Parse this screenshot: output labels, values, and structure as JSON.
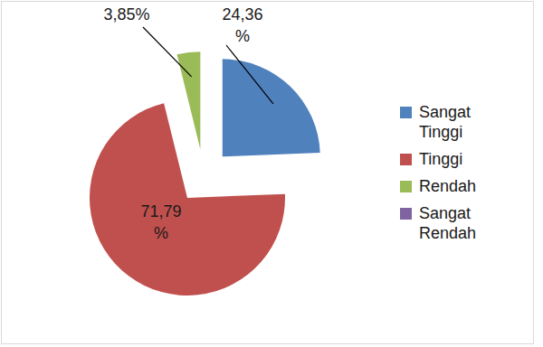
{
  "chart_data": {
    "type": "pie",
    "categories": [
      "Sangat Tinggi",
      "Tinggi",
      "Rendah",
      "Sangat Rendah"
    ],
    "values": [
      24.36,
      71.79,
      3.85,
      0
    ],
    "value_labels": [
      "24,36 %",
      "71,79 %",
      "3,85%",
      null
    ],
    "colors": [
      "#4f81bd",
      "#c0504d",
      "#9bbb59",
      "#8064a2"
    ],
    "data_labels": true,
    "legend": "right"
  }
}
